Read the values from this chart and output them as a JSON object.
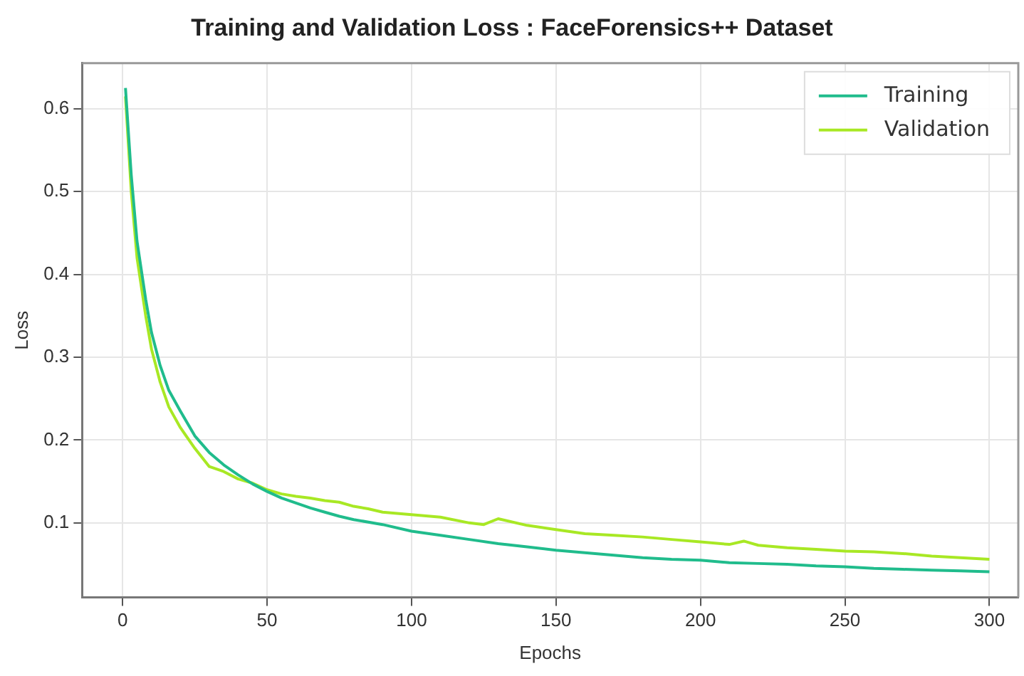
{
  "chart_data": {
    "type": "line",
    "title": "Training and Validation Loss : FaceForensics++ Dataset",
    "xlabel": "Epochs",
    "ylabel": "Loss",
    "xlim": [
      -14,
      310
    ],
    "ylim": [
      0.01,
      0.655
    ],
    "xticks": [
      0,
      50,
      100,
      150,
      200,
      250,
      300
    ],
    "yticks": [
      0.1,
      0.2,
      0.3,
      0.4,
      0.5,
      0.6
    ],
    "grid": true,
    "legend": "top right",
    "marker": "none",
    "line_style": "solid",
    "series": [
      {
        "name": "Training",
        "color": "#20bc8c",
        "x": [
          1,
          3,
          5,
          8,
          10,
          13,
          16,
          20,
          25,
          30,
          35,
          40,
          45,
          50,
          55,
          60,
          65,
          70,
          75,
          80,
          90,
          100,
          110,
          120,
          130,
          140,
          150,
          160,
          170,
          180,
          190,
          200,
          210,
          220,
          230,
          240,
          250,
          260,
          270,
          280,
          290,
          300
        ],
        "values": [
          0.625,
          0.52,
          0.44,
          0.37,
          0.33,
          0.29,
          0.26,
          0.235,
          0.205,
          0.185,
          0.17,
          0.158,
          0.147,
          0.138,
          0.13,
          0.124,
          0.118,
          0.113,
          0.108,
          0.104,
          0.098,
          0.09,
          0.085,
          0.08,
          0.075,
          0.071,
          0.067,
          0.064,
          0.061,
          0.058,
          0.056,
          0.055,
          0.052,
          0.051,
          0.05,
          0.048,
          0.047,
          0.045,
          0.044,
          0.043,
          0.042,
          0.041
        ]
      },
      {
        "name": "Validation",
        "color": "#a8e824",
        "x": [
          1,
          3,
          5,
          8,
          10,
          13,
          16,
          20,
          25,
          30,
          35,
          40,
          45,
          50,
          55,
          60,
          65,
          70,
          75,
          80,
          85,
          90,
          100,
          110,
          120,
          125,
          130,
          140,
          150,
          160,
          170,
          180,
          190,
          200,
          210,
          215,
          220,
          230,
          240,
          250,
          260,
          270,
          280,
          290,
          300
        ],
        "values": [
          0.615,
          0.5,
          0.42,
          0.35,
          0.31,
          0.27,
          0.24,
          0.215,
          0.19,
          0.168,
          0.162,
          0.153,
          0.148,
          0.14,
          0.135,
          0.132,
          0.13,
          0.127,
          0.125,
          0.12,
          0.117,
          0.113,
          0.11,
          0.107,
          0.1,
          0.098,
          0.105,
          0.097,
          0.092,
          0.087,
          0.085,
          0.083,
          0.08,
          0.077,
          0.074,
          0.078,
          0.073,
          0.07,
          0.068,
          0.066,
          0.065,
          0.063,
          0.06,
          0.058,
          0.056
        ]
      }
    ]
  }
}
